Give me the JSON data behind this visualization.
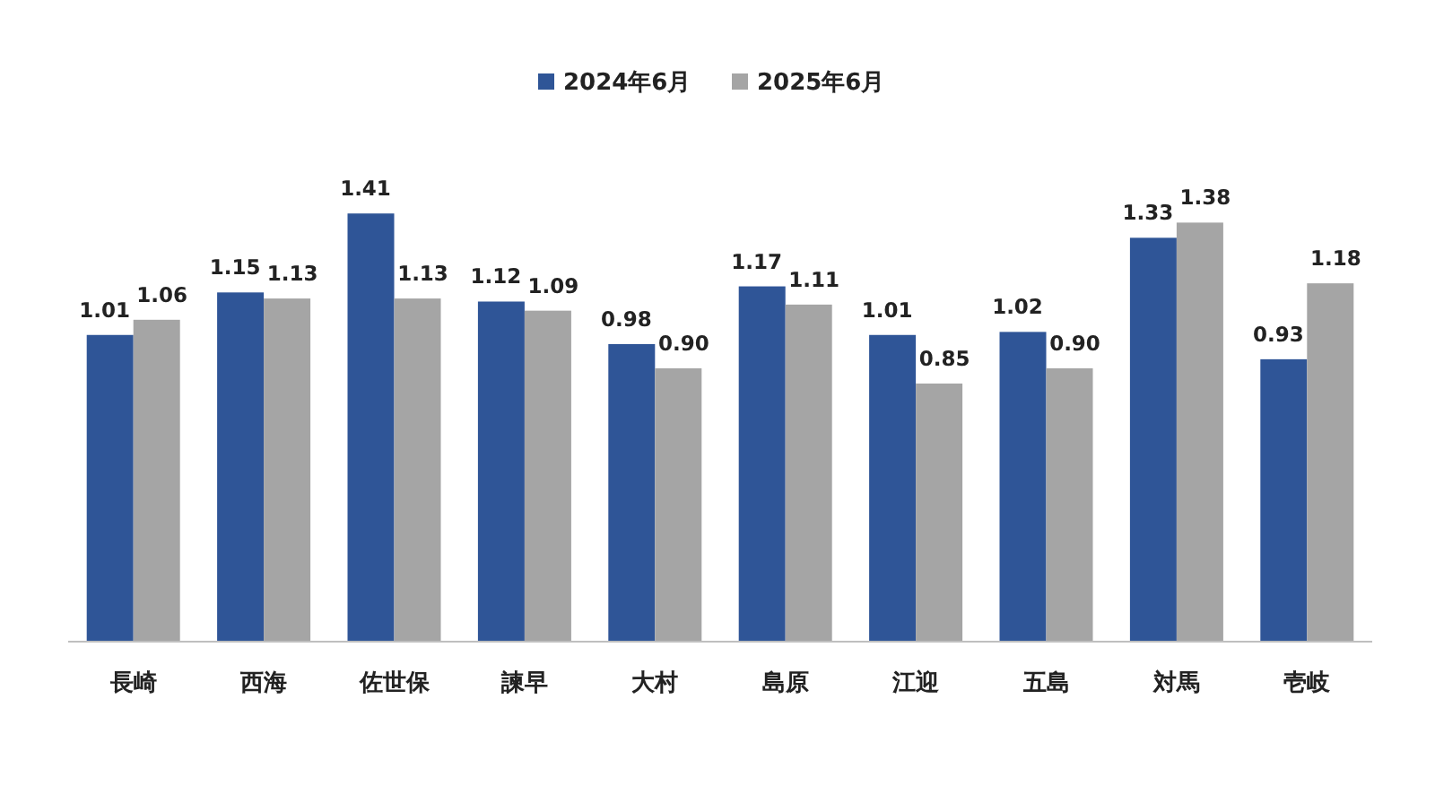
{
  "chart_data": {
    "type": "bar",
    "categories": [
      "長崎",
      "西海",
      "佐世保",
      "諫早",
      "大村",
      "島原",
      "江迎",
      "五島",
      "対馬",
      "壱岐"
    ],
    "series": [
      {
        "name": "2024年6月",
        "color": "#2f5597",
        "values": [
          1.01,
          1.15,
          1.41,
          1.12,
          0.98,
          1.17,
          1.01,
          1.02,
          1.33,
          0.93
        ],
        "value_labels": [
          "1.01",
          "1.15",
          "1.41",
          "1.12",
          "0.98",
          "1.17",
          "1.01",
          "1.02",
          "1.33",
          "0.93"
        ]
      },
      {
        "name": "2025年6月",
        "color": "#a5a5a5",
        "values": [
          1.06,
          1.13,
          1.13,
          1.09,
          0.9,
          1.11,
          0.85,
          0.9,
          1.38,
          1.18
        ],
        "value_labels": [
          "1.06",
          "1.13",
          "1.13",
          "1.09",
          "0.90",
          "1.11",
          "0.85",
          "0.90",
          "1.38",
          "1.18"
        ]
      }
    ],
    "legend": "top"
  }
}
